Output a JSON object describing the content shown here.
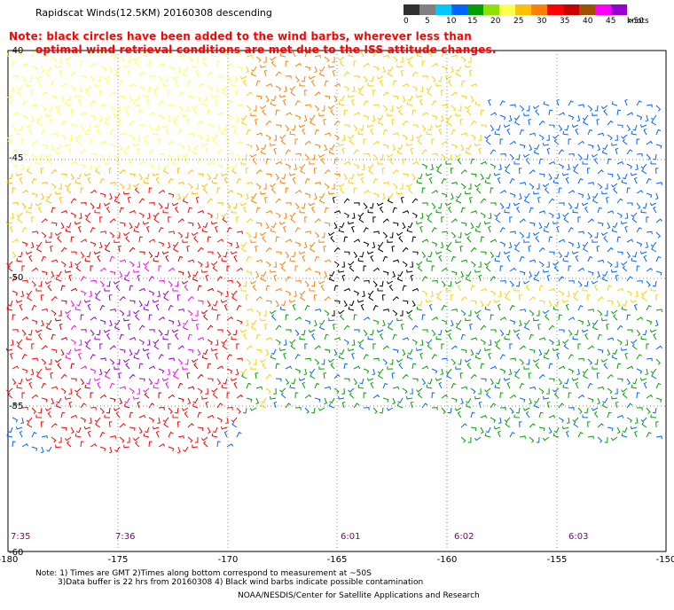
{
  "title": "Rapidscat Winds(12.5KM) 20160308 descending",
  "notes": [
    "Note: black circles have been added to the wind barbs, wherever less than",
    "optimal wind retrieval conditions are met due to the ISS attitude changes."
  ],
  "legend": {
    "labels": [
      "0",
      "5",
      "10",
      "15",
      "20",
      "25",
      "30",
      "35",
      "40",
      "45",
      ">50"
    ],
    "unit": "knots",
    "colors": [
      "#303030",
      "#808080",
      "#00c8ff",
      "#0064ff",
      "#00a000",
      "#90e000",
      "#ffff50",
      "#ffc000",
      "#ff8000",
      "#ff0000",
      "#c80000",
      "#a05000",
      "#ff00ff",
      "#9600c8"
    ]
  },
  "axes": {
    "lon_ticks": [
      "-180",
      "-175",
      "-170",
      "-165",
      "-160",
      "-155",
      "-150"
    ],
    "lat_ticks": [
      "-40",
      "-45",
      "-50",
      "-55",
      "-60"
    ],
    "lon_range": [
      -180,
      -150
    ],
    "lat_range": [
      -40,
      -60
    ]
  },
  "times": [
    "7:35",
    "7:36",
    "6:01",
    "6:02",
    "6:03"
  ],
  "footer": [
    "Note: 1) Times are GMT 2)Times along bottom correspond to measurement at ~50S",
    "3)Data buffer is 22 hrs from 20160308 4) Black wind barbs indicate possible contamination",
    "NOAA/NESDIS/Center for Satellite Applications and Research"
  ]
}
